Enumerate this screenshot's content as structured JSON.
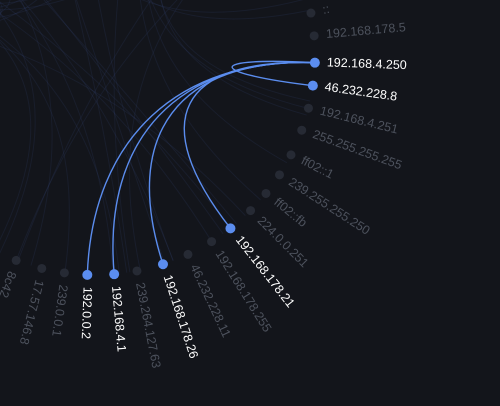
{
  "nodes": [
    {
      "label": "::",
      "highlighted": false
    },
    {
      "label": "192.168.178.5",
      "highlighted": false
    },
    {
      "label": "192.168.4.250",
      "highlighted": true
    },
    {
      "label": "46.232.228.8",
      "highlighted": true
    },
    {
      "label": "192.168.4.251",
      "highlighted": false
    },
    {
      "label": "255.255.255.255",
      "highlighted": false
    },
    {
      "label": "ff02::1",
      "highlighted": false
    },
    {
      "label": "239.255.255.250",
      "highlighted": false
    },
    {
      "label": "ff02::fb",
      "highlighted": false
    },
    {
      "label": "224.0.0.251",
      "highlighted": false
    },
    {
      "label": "192.168.178.21",
      "highlighted": true
    },
    {
      "label": "192.168.178.255",
      "highlighted": false
    },
    {
      "label": "46.232.228.11",
      "highlighted": false
    },
    {
      "label": "192.168.178.26",
      "highlighted": true
    },
    {
      "label": "239.264.127.63",
      "highlighted": false
    },
    {
      "label": "192.168.4.1",
      "highlighted": true
    },
    {
      "label": "192.0.0.2",
      "highlighted": true
    },
    {
      "label": "239.0.0.1",
      "highlighted": false
    },
    {
      "label": "17.57.146.8",
      "highlighted": false
    },
    {
      "label": "8c42",
      "highlighted": false
    }
  ]
}
